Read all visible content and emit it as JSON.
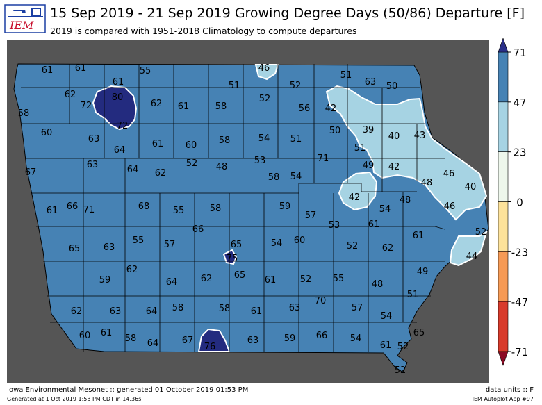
{
  "header": {
    "logo_text": "IEM",
    "title": "15 Sep 2019 - 21 Sep 2019 Growing Degree Days (50/86) Departure [F]",
    "subtitle": "2019 is compared with 1951-2018 Climatology to compute departures"
  },
  "colors": {
    "map_background": "#555555",
    "state_fill": "#4682b4",
    "light_fill": "#a6d3e3",
    "high_fill": "#232b7f",
    "county_line": "#000000",
    "contour_line": "#ffffff"
  },
  "colorbar": {
    "ticks": [
      "71",
      "47",
      "23",
      "0",
      "-23",
      "-47",
      "-71"
    ],
    "bins": [
      {
        "range": "47 to 71",
        "color": "#4682b4"
      },
      {
        "range": "23 to 47",
        "color": "#a6d3e3"
      },
      {
        "range": "0 to 23",
        "color": "#eef7ec"
      },
      {
        "range": "-23 to 0",
        "color": "#fde29a"
      },
      {
        "range": "-47 to -23",
        "color": "#f69a55"
      },
      {
        "range": "-71 to -47",
        "color": "#d83a2b"
      }
    ],
    "over_color": "#2a2f8a",
    "under_color": "#8b0a23"
  },
  "values": [
    "61",
    "61",
    "55",
    "46",
    "51",
    "63",
    "50",
    "61",
    "51",
    "52",
    "62",
    "80",
    "62",
    "61",
    "58",
    "52",
    "56",
    "42",
    "58",
    "72",
    "72",
    "60",
    "63",
    "61",
    "60",
    "58",
    "54",
    "51",
    "50",
    "39",
    "40",
    "43",
    "64",
    "51",
    "67",
    "63",
    "64",
    "62",
    "52",
    "48",
    "53",
    "71",
    "49",
    "42",
    "46",
    "58",
    "54",
    "48",
    "40",
    "42",
    "61",
    "66",
    "71",
    "68",
    "55",
    "58",
    "59",
    "57",
    "54",
    "48",
    "46",
    "53",
    "61",
    "66",
    "61",
    "52",
    "65",
    "63",
    "55",
    "57",
    "65",
    "54",
    "60",
    "52",
    "62",
    "75",
    "44",
    "62",
    "64",
    "61",
    "52",
    "55",
    "48",
    "49",
    "59",
    "62",
    "65",
    "51",
    "70",
    "62",
    "63",
    "64",
    "58",
    "58",
    "61",
    "63",
    "57",
    "54",
    "60",
    "61",
    "58",
    "64",
    "67",
    "76",
    "63",
    "59",
    "66",
    "54",
    "65",
    "61",
    "52",
    "52"
  ],
  "footer": {
    "left": "Iowa Environmental Mesonet :: generated 01 October 2019 01:53 PM",
    "left_small": "Generated at 1 Oct 2019 1:53 PM CDT in 14.36s",
    "right": "data units :: F",
    "right_small": "IEM Autoplot App #97"
  }
}
